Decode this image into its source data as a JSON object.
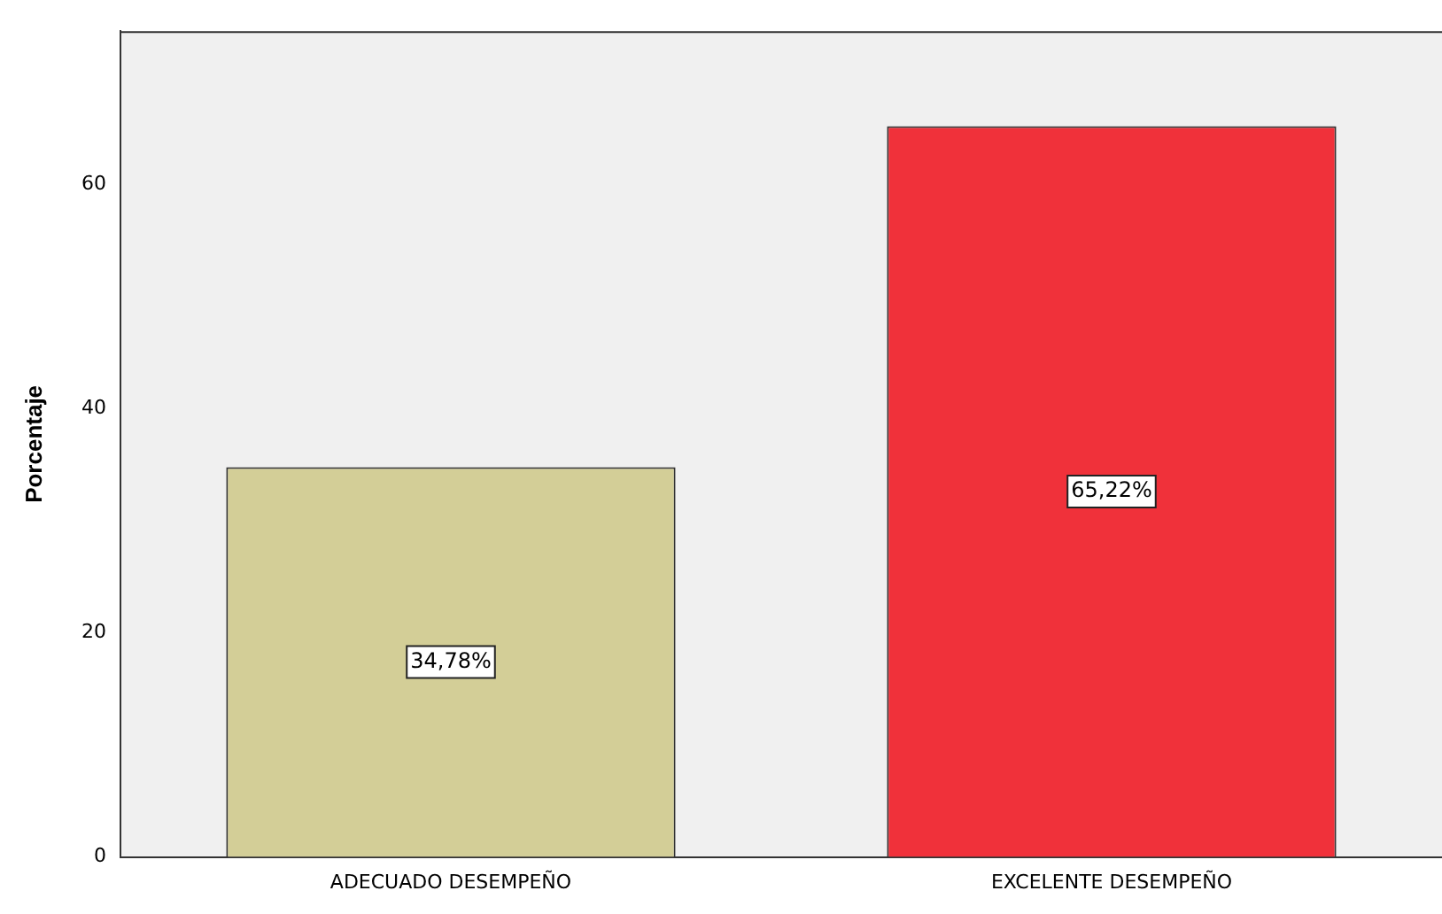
{
  "chart_data": {
    "type": "bar",
    "ylabel": "Porcentaje",
    "categories": [
      "ADECUADO DESEMPEÑO",
      "EXCELENTE DESEMPEÑO"
    ],
    "values": [
      34.78,
      65.22
    ],
    "colors": [
      "#d3ce97",
      "#f0313a"
    ],
    "value_labels": [
      "34,78%",
      "65,22%"
    ],
    "ylim": [
      0,
      73.7
    ],
    "yticks": [
      0,
      20,
      40,
      60
    ],
    "grid": false,
    "legend": false
  }
}
